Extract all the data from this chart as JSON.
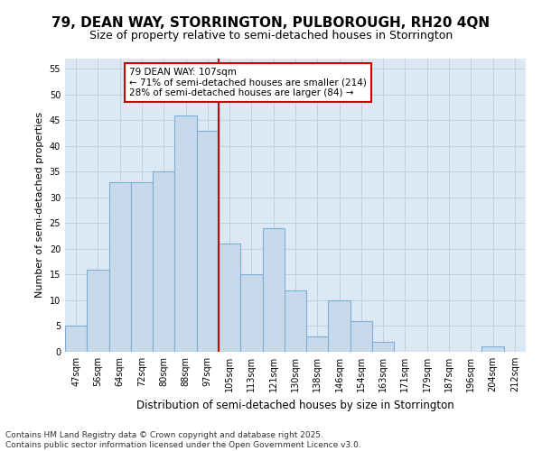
{
  "title": "79, DEAN WAY, STORRINGTON, PULBOROUGH, RH20 4QN",
  "subtitle": "Size of property relative to semi-detached houses in Storrington",
  "xlabel": "Distribution of semi-detached houses by size in Storrington",
  "ylabel": "Number of semi-detached properties",
  "categories": [
    "47sqm",
    "56sqm",
    "64sqm",
    "72sqm",
    "80sqm",
    "88sqm",
    "97sqm",
    "105sqm",
    "113sqm",
    "121sqm",
    "130sqm",
    "138sqm",
    "146sqm",
    "154sqm",
    "163sqm",
    "171sqm",
    "179sqm",
    "187sqm",
    "196sqm",
    "204sqm",
    "212sqm"
  ],
  "values": [
    5,
    16,
    33,
    33,
    35,
    46,
    43,
    21,
    15,
    24,
    12,
    3,
    10,
    6,
    2,
    0,
    0,
    0,
    0,
    1,
    0
  ],
  "bar_color": "#c9d9ec",
  "bar_edge_color": "#7bafd4",
  "annotation_text": "79 DEAN WAY: 107sqm\n← 71% of semi-detached houses are smaller (214)\n28% of semi-detached houses are larger (84) →",
  "annotation_box_color": "#ffffff",
  "annotation_box_edge_color": "#cc0000",
  "vline_color": "#cc0000",
  "ylim": [
    0,
    57
  ],
  "yticks": [
    0,
    5,
    10,
    15,
    20,
    25,
    30,
    35,
    40,
    45,
    50,
    55
  ],
  "grid_color": "#c0d0e0",
  "background_color": "#dce9f5",
  "footer": "Contains HM Land Registry data © Crown copyright and database right 2025.\nContains public sector information licensed under the Open Government Licence v3.0.",
  "title_fontsize": 11,
  "subtitle_fontsize": 9,
  "xlabel_fontsize": 8.5,
  "ylabel_fontsize": 8,
  "tick_fontsize": 7,
  "footer_fontsize": 6.5,
  "annotation_fontsize": 7.5
}
